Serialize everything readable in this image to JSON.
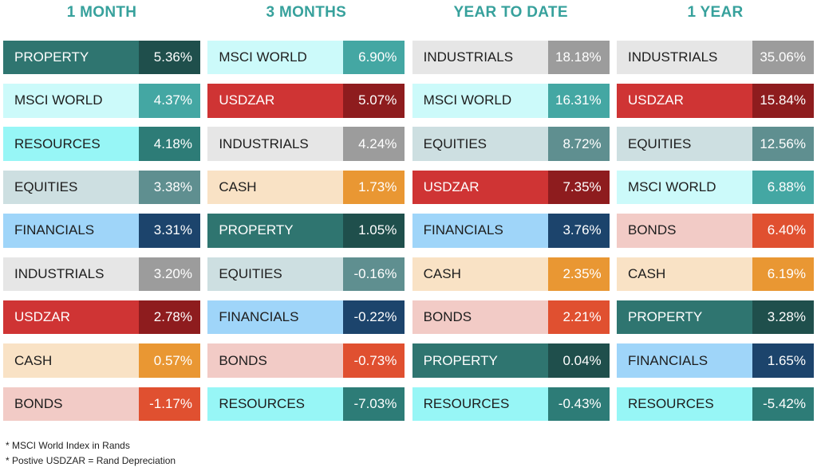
{
  "chart_data": {
    "type": "table",
    "columns": [
      {
        "title": "1 MONTH",
        "rows": [
          {
            "label": "PROPERTY",
            "value": "5.36%"
          },
          {
            "label": "MSCI WORLD",
            "value": "4.37%"
          },
          {
            "label": "RESOURCES",
            "value": "4.18%"
          },
          {
            "label": "EQUITIES",
            "value": "3.38%"
          },
          {
            "label": "FINANCIALS",
            "value": "3.31%"
          },
          {
            "label": "INDUSTRIALS",
            "value": "3.20%"
          },
          {
            "label": "USDZAR",
            "value": "2.78%"
          },
          {
            "label": "CASH",
            "value": "0.57%"
          },
          {
            "label": "BONDS",
            "value": "-1.17%"
          }
        ]
      },
      {
        "title": "3 MONTHS",
        "rows": [
          {
            "label": "MSCI WORLD",
            "value": "6.90%"
          },
          {
            "label": "USDZAR",
            "value": "5.07%"
          },
          {
            "label": "INDUSTRIALS",
            "value": "4.24%"
          },
          {
            "label": "CASH",
            "value": "1.73%"
          },
          {
            "label": "PROPERTY",
            "value": "1.05%"
          },
          {
            "label": "EQUITIES",
            "value": "-0.16%"
          },
          {
            "label": "FINANCIALS",
            "value": "-0.22%"
          },
          {
            "label": "BONDS",
            "value": "-0.73%"
          },
          {
            "label": "RESOURCES",
            "value": "-7.03%"
          }
        ]
      },
      {
        "title": "YEAR TO DATE",
        "rows": [
          {
            "label": "INDUSTRIALS",
            "value": "18.18%"
          },
          {
            "label": "MSCI WORLD",
            "value": "16.31%"
          },
          {
            "label": "EQUITIES",
            "value": "8.72%"
          },
          {
            "label": "USDZAR",
            "value": "7.35%"
          },
          {
            "label": "FINANCIALS",
            "value": "3.76%"
          },
          {
            "label": "CASH",
            "value": "2.35%"
          },
          {
            "label": "BONDS",
            "value": "2.21%"
          },
          {
            "label": "PROPERTY",
            "value": "0.04%"
          },
          {
            "label": "RESOURCES",
            "value": "-0.43%"
          }
        ]
      },
      {
        "title": "1 YEAR",
        "rows": [
          {
            "label": "INDUSTRIALS",
            "value": "35.06%"
          },
          {
            "label": "USDZAR",
            "value": "15.84%"
          },
          {
            "label": "EQUITIES",
            "value": "12.56%"
          },
          {
            "label": "MSCI WORLD",
            "value": "6.88%"
          },
          {
            "label": "BONDS",
            "value": "6.40%"
          },
          {
            "label": "CASH",
            "value": "6.19%"
          },
          {
            "label": "PROPERTY",
            "value": "3.28%"
          },
          {
            "label": "FINANCIALS",
            "value": "1.65%"
          },
          {
            "label": "RESOURCES",
            "value": "-5.42%"
          }
        ]
      }
    ],
    "asset_colors": {
      "PROPERTY": {
        "label_bg": "#2f7570",
        "value_bg": "#1f4f4c",
        "label_text": "#ffffff"
      },
      "MSCI WORLD": {
        "label_bg": "#ccfafa",
        "value_bg": "#44a7a3",
        "label_text": "#1d1d1d"
      },
      "RESOURCES": {
        "label_bg": "#97f6f6",
        "value_bg": "#2d7c77",
        "label_text": "#1d1d1d"
      },
      "EQUITIES": {
        "label_bg": "#cddfe1",
        "value_bg": "#5f8f90",
        "label_text": "#1d1d1d"
      },
      "FINANCIALS": {
        "label_bg": "#9fd5f9",
        "value_bg": "#1c446c",
        "label_text": "#1d1d1d"
      },
      "INDUSTRIALS": {
        "label_bg": "#e6e6e6",
        "value_bg": "#9c9c9c",
        "label_text": "#1d1d1d"
      },
      "USDZAR": {
        "label_bg": "#cf3434",
        "value_bg": "#8e1c1e",
        "label_text": "#ffffff"
      },
      "CASH": {
        "label_bg": "#f9e2c5",
        "value_bg": "#e99733",
        "label_text": "#1d1d1d"
      },
      "BONDS": {
        "label_bg": "#f2cbc6",
        "value_bg": "#e05030",
        "label_text": "#1d1d1d"
      }
    }
  },
  "notes": [
    "* MSCI World Index in  Rands",
    "* Postive USDZAR = Rand Depreciation"
  ]
}
